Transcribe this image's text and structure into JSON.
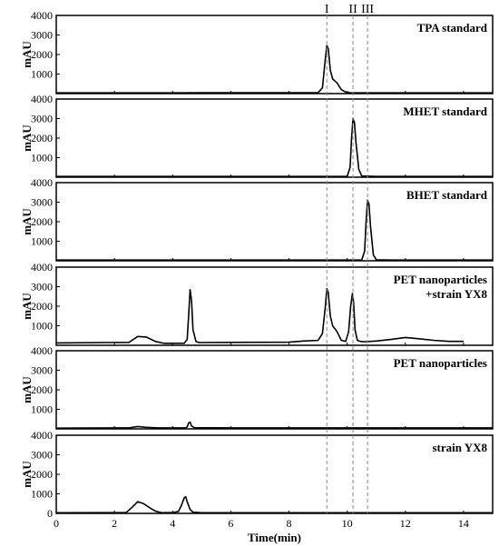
{
  "chart_data": {
    "type": "line",
    "xlabel": "Time(min)",
    "ylabel": "mAU",
    "xlim": [
      0,
      15
    ],
    "x_ticks": [
      0,
      2,
      4,
      6,
      8,
      10,
      12,
      14
    ],
    "ylim": [
      0,
      4000
    ],
    "y_ticks": [
      1000,
      2000,
      3000,
      4000
    ],
    "markers": [
      {
        "label": "I",
        "x": 9.3
      },
      {
        "label": "II",
        "x": 10.2
      },
      {
        "label": "III",
        "x": 10.7
      }
    ],
    "panels": [
      {
        "title": [
          "TPA standard"
        ],
        "x": [
          0,
          2,
          4,
          5,
          9.0,
          9.15,
          9.25,
          9.3,
          9.35,
          9.42,
          9.5,
          9.65,
          9.8,
          9.95,
          10.1,
          11,
          15
        ],
        "y": [
          40,
          40,
          40,
          45,
          45,
          300,
          1800,
          2450,
          2300,
          1200,
          750,
          550,
          200,
          80,
          45,
          40,
          40
        ]
      },
      {
        "title": [
          "MHET standard"
        ],
        "x": [
          0,
          5,
          10.0,
          10.1,
          10.15,
          10.2,
          10.25,
          10.3,
          10.4,
          10.5,
          11,
          15
        ],
        "y": [
          40,
          40,
          40,
          500,
          2000,
          3000,
          2800,
          1800,
          400,
          60,
          40,
          40
        ]
      },
      {
        "title": [
          "BHET standard"
        ],
        "x": [
          0,
          5,
          10.5,
          10.6,
          10.65,
          10.7,
          10.75,
          10.8,
          10.9,
          11.0,
          11.5,
          15
        ],
        "y": [
          40,
          40,
          40,
          500,
          2000,
          3100,
          2900,
          1800,
          300,
          50,
          40,
          40
        ]
      },
      {
        "title": [
          "PET nanoparticles",
          "+strain YX8"
        ],
        "x": [
          0,
          2.5,
          2.8,
          3.1,
          3.4,
          3.7,
          4.4,
          4.5,
          4.55,
          4.6,
          4.65,
          4.7,
          4.8,
          4.9,
          6,
          8,
          8.5,
          9.0,
          9.15,
          9.25,
          9.3,
          9.35,
          9.42,
          9.5,
          9.65,
          9.8,
          9.95,
          10.05,
          10.12,
          10.18,
          10.22,
          10.27,
          10.35,
          10.45,
          10.6,
          11,
          11.5,
          12,
          12.5,
          13,
          13.5,
          14
        ],
        "y": [
          120,
          150,
          450,
          420,
          200,
          100,
          100,
          300,
          1500,
          2850,
          2300,
          800,
          200,
          140,
          150,
          160,
          220,
          250,
          600,
          2000,
          2900,
          2700,
          1500,
          1000,
          700,
          250,
          200,
          700,
          2000,
          2650,
          2200,
          800,
          250,
          200,
          180,
          220,
          300,
          400,
          330,
          250,
          200,
          200
        ]
      },
      {
        "title": [
          "PET nanoparticles"
        ],
        "x": [
          0,
          2.5,
          2.8,
          3.1,
          3.5,
          4.45,
          4.5,
          4.55,
          4.6,
          4.65,
          4.75,
          6,
          9,
          10,
          11,
          15
        ],
        "y": [
          40,
          50,
          120,
          80,
          50,
          50,
          100,
          300,
          350,
          150,
          60,
          50,
          50,
          50,
          50,
          50
        ]
      },
      {
        "title": [
          "strain YX8"
        ],
        "x": [
          0,
          2.4,
          2.6,
          2.8,
          3.0,
          3.2,
          3.4,
          3.6,
          4.0,
          4.2,
          4.3,
          4.4,
          4.45,
          4.5,
          4.6,
          4.7,
          5,
          10,
          15
        ],
        "y": [
          30,
          40,
          300,
          600,
          500,
          300,
          120,
          40,
          40,
          100,
          400,
          800,
          850,
          600,
          200,
          60,
          30,
          30,
          30
        ]
      }
    ]
  }
}
